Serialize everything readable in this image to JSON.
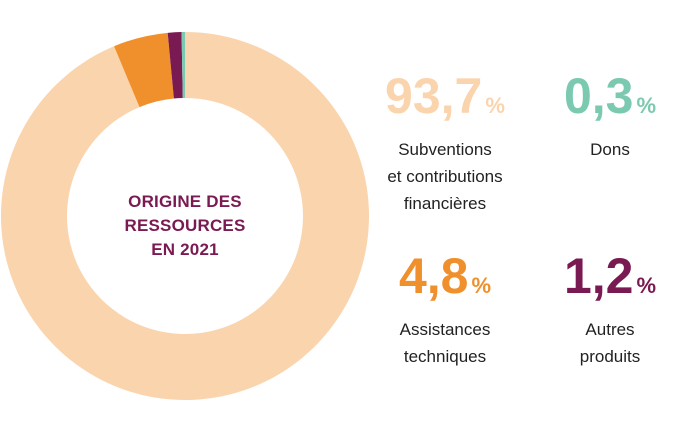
{
  "chart_data": {
    "type": "pie",
    "title": "",
    "center_label": [
      "ORIGINE DES",
      "RESSOURCES",
      "EN 2021"
    ],
    "slices": [
      {
        "label": "Subventions et contributions financières",
        "value": 93.7,
        "value_text": "93,7",
        "label_lines": [
          "Subventions",
          "et contributions",
          "financières"
        ],
        "color": "#fad4ad"
      },
      {
        "label": "Assistances techniques",
        "value": 4.8,
        "value_text": "4,8",
        "label_lines": [
          "Assistances",
          "techniques"
        ],
        "color": "#f0902c"
      },
      {
        "label": "Autres produits",
        "value": 1.2,
        "value_text": "1,2",
        "label_lines": [
          "Autres",
          "produits"
        ],
        "color": "#7a1a52"
      },
      {
        "label": "Dons",
        "value": 0.3,
        "value_text": "0,3",
        "label_lines": [
          "Dons"
        ],
        "color": "#7cc9b2"
      }
    ],
    "percent_symbol": "%",
    "value_colors": {
      "subventions": "#fad4ad",
      "dons": "#7cc9b2",
      "assistances": "#f0902c",
      "autres": "#7a1a52"
    }
  }
}
